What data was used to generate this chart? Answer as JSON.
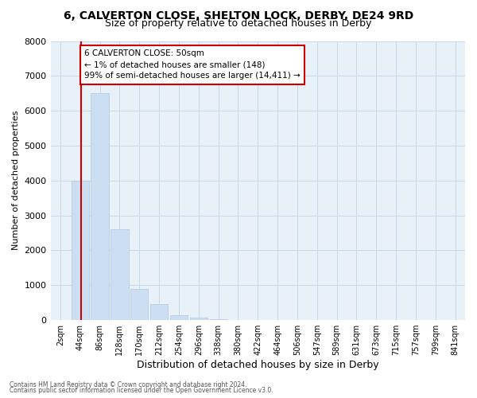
{
  "title_line1": "6, CALVERTON CLOSE, SHELTON LOCK, DERBY, DE24 9RD",
  "title_line2": "Size of property relative to detached houses in Derby",
  "xlabel": "Distribution of detached houses by size in Derby",
  "ylabel": "Number of detached properties",
  "bar_color": "#ccdff2",
  "bar_edge_color": "#aec8e8",
  "categories": [
    "2sqm",
    "44sqm",
    "86sqm",
    "128sqm",
    "170sqm",
    "212sqm",
    "254sqm",
    "296sqm",
    "338sqm",
    "380sqm",
    "422sqm",
    "464sqm",
    "506sqm",
    "547sqm",
    "589sqm",
    "631sqm",
    "673sqm",
    "715sqm",
    "757sqm",
    "799sqm",
    "841sqm"
  ],
  "values": [
    0,
    4000,
    6500,
    2600,
    900,
    450,
    150,
    80,
    30,
    10,
    3,
    1,
    0,
    0,
    0,
    0,
    0,
    0,
    0,
    0,
    0
  ],
  "annotation_text": "6 CALVERTON CLOSE: 50sqm\n← 1% of detached houses are smaller (148)\n99% of semi-detached houses are larger (14,411) →",
  "annotation_box_color": "#ffffff",
  "annotation_box_edge": "#cc0000",
  "vline_color": "#cc0000",
  "grid_color": "#c8d8ea",
  "bg_color": "#e8f0f8",
  "footer_line1": "Contains HM Land Registry data © Crown copyright and database right 2024.",
  "footer_line2": "Contains public sector information licensed under the Open Government Licence v3.0.",
  "ylim": [
    0,
    8000
  ],
  "yticks": [
    0,
    1000,
    2000,
    3000,
    4000,
    5000,
    6000,
    7000,
    8000
  ]
}
